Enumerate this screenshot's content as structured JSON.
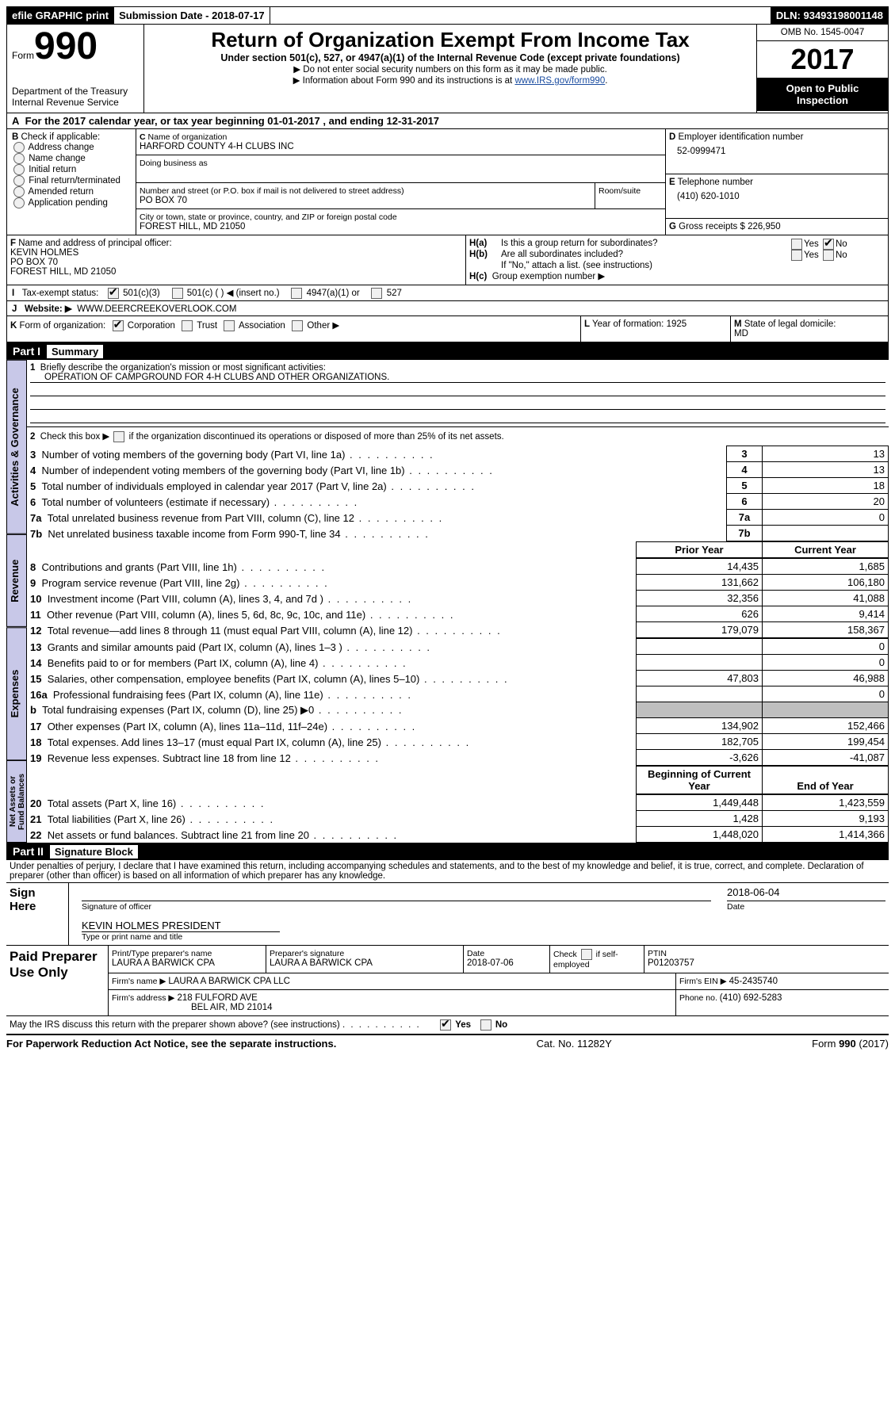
{
  "topbar": {
    "efile": "efile GRAPHIC print",
    "submission_label": "Submission Date - ",
    "submission_date": "2018-07-17",
    "dln_label": "DLN: ",
    "dln": "93493198001148"
  },
  "header": {
    "form_word": "Form",
    "form_number": "990",
    "dept1": "Department of the Treasury",
    "dept2": "Internal Revenue Service",
    "title": "Return of Organization Exempt From Income Tax",
    "sub1": "Under section 501(c), 527, or 4947(a)(1) of the Internal Revenue Code (except private foundations)",
    "sub2": "Do not enter social security numbers on this form as it may be made public.",
    "sub3_a": "Information about Form 990 and its instructions is at ",
    "sub3_link": "www.IRS.gov/form990",
    "omb_label": "OMB No. ",
    "omb": "1545-0047",
    "year": "2017",
    "open": "Open to Public Inspection"
  },
  "A": {
    "text_a": "For the 2017 calendar year, or tax year beginning ",
    "begin": "01-01-2017",
    "text_b": " , and ending ",
    "end": "12-31-2017"
  },
  "B": {
    "label": "Check if applicable:",
    "items": [
      "Address change",
      "Name change",
      "Initial return",
      "Final return/terminated",
      "Amended return",
      "Application pending"
    ]
  },
  "C": {
    "name_label": "Name of organization",
    "org_name": "HARFORD COUNTY 4-H CLUBS INC",
    "dba_label": "Doing business as",
    "street_label": "Number and street (or P.O. box if mail is not delivered to street address)",
    "room_label": "Room/suite",
    "street": "PO BOX 70",
    "city_label": "City or town, state or province, country, and ZIP or foreign postal code",
    "city": "FOREST HILL, MD  21050"
  },
  "D": {
    "label": "Employer identification number",
    "val": "52-0999471"
  },
  "E": {
    "label": "Telephone number",
    "val": "(410) 620-1010"
  },
  "G": {
    "label": "Gross receipts $ ",
    "val": "226,950"
  },
  "F": {
    "label": "Name and address of principal officer:",
    "l1": "KEVIN HOLMES",
    "l2": "PO BOX 70",
    "l3": "FOREST HILL, MD  21050"
  },
  "H": {
    "a": "Is this a group return for subordinates?",
    "b": "Are all subordinates included?",
    "note": "If \"No,\" attach a list. (see instructions)",
    "c": "Group exemption number ▶"
  },
  "I": {
    "label": "Tax-exempt status:",
    "opts": [
      "501(c)(3)",
      "501(c) (  ) ◀ (insert no.)",
      "4947(a)(1) or",
      "527"
    ]
  },
  "J": {
    "label": "Website: ▶",
    "val": "WWW.DEERCREEKOVERLOOK.COM"
  },
  "K": {
    "label": "Form of organization:",
    "opts": [
      "Corporation",
      "Trust",
      "Association",
      "Other ▶"
    ]
  },
  "L": {
    "label": "Year of formation: ",
    "val": "1925"
  },
  "M": {
    "label": "State of legal domicile:",
    "val": "MD"
  },
  "part1": {
    "title": "Part I",
    "subtitle": "Summary",
    "l1_label": "Briefly describe the organization's mission or most significant activities:",
    "l1_val": "OPERATION OF CAMPGROUND FOR 4-H CLUBS AND OTHER ORGANIZATIONS.",
    "l2": "Check this box ▶ if the organization discontinued its operations or disposed of more than 25% of its net assets.",
    "rows_gov": [
      {
        "n": "3",
        "t": "Number of voting members of the governing body (Part VI, line 1a)",
        "v": "13"
      },
      {
        "n": "4",
        "t": "Number of independent voting members of the governing body (Part VI, line 1b)",
        "v": "13"
      },
      {
        "n": "5",
        "t": "Total number of individuals employed in calendar year 2017 (Part V, line 2a)",
        "v": "18"
      },
      {
        "n": "6",
        "t": "Total number of volunteers (estimate if necessary)",
        "v": "20"
      },
      {
        "n": "7a",
        "t": "Total unrelated business revenue from Part VIII, column (C), line 12",
        "v": "0"
      },
      {
        "n": "7b",
        "t": "Net unrelated business taxable income from Form 990-T, line 34",
        "v": ""
      }
    ],
    "col_prior": "Prior Year",
    "col_curr": "Current Year",
    "rows_rev": [
      {
        "n": "8",
        "t": "Contributions and grants (Part VIII, line 1h)",
        "p": "14,435",
        "c": "1,685"
      },
      {
        "n": "9",
        "t": "Program service revenue (Part VIII, line 2g)",
        "p": "131,662",
        "c": "106,180"
      },
      {
        "n": "10",
        "t": "Investment income (Part VIII, column (A), lines 3, 4, and 7d )",
        "p": "32,356",
        "c": "41,088"
      },
      {
        "n": "11",
        "t": "Other revenue (Part VIII, column (A), lines 5, 6d, 8c, 9c, 10c, and 11e)",
        "p": "626",
        "c": "9,414"
      },
      {
        "n": "12",
        "t": "Total revenue—add lines 8 through 11 (must equal Part VIII, column (A), line 12)",
        "p": "179,079",
        "c": "158,367"
      }
    ],
    "rows_exp": [
      {
        "n": "13",
        "t": "Grants and similar amounts paid (Part IX, column (A), lines 1–3 )",
        "p": "",
        "c": "0"
      },
      {
        "n": "14",
        "t": "Benefits paid to or for members (Part IX, column (A), line 4)",
        "p": "",
        "c": "0"
      },
      {
        "n": "15",
        "t": "Salaries, other compensation, employee benefits (Part IX, column (A), lines 5–10)",
        "p": "47,803",
        "c": "46,988"
      },
      {
        "n": "16a",
        "t": "Professional fundraising fees (Part IX, column (A), line 11e)",
        "p": "",
        "c": "0"
      },
      {
        "n": "b",
        "t": "Total fundraising expenses (Part IX, column (D), line 25) ▶0",
        "p": "GREY",
        "c": "GREY"
      },
      {
        "n": "17",
        "t": "Other expenses (Part IX, column (A), lines 11a–11d, 11f–24e)",
        "p": "134,902",
        "c": "152,466"
      },
      {
        "n": "18",
        "t": "Total expenses. Add lines 13–17 (must equal Part IX, column (A), line 25)",
        "p": "182,705",
        "c": "199,454"
      },
      {
        "n": "19",
        "t": "Revenue less expenses. Subtract line 18 from line 12",
        "p": "-3,626",
        "c": "-41,087"
      }
    ],
    "col_beg": "Beginning of Current Year",
    "col_end": "End of Year",
    "rows_net": [
      {
        "n": "20",
        "t": "Total assets (Part X, line 16)",
        "p": "1,449,448",
        "c": "1,423,559"
      },
      {
        "n": "21",
        "t": "Total liabilities (Part X, line 26)",
        "p": "1,428",
        "c": "9,193"
      },
      {
        "n": "22",
        "t": "Net assets or fund balances. Subtract line 21 from line 20",
        "p": "1,448,020",
        "c": "1,414,366"
      }
    ],
    "tabs": [
      "Activities & Governance",
      "Revenue",
      "Expenses",
      "Net Assets or Fund Balances"
    ]
  },
  "part2": {
    "title": "Part II",
    "subtitle": "Signature Block",
    "jurat": "Under penalties of perjury, I declare that I have examined this return, including accompanying schedules and statements, and to the best of my knowledge and belief, it is true, correct, and complete. Declaration of preparer (other than officer) is based on all information of which preparer has any knowledge.",
    "sign_here": "Sign Here",
    "sig_date": "2018-06-04",
    "sig_officer": "Signature of officer",
    "sig_date_lbl": "Date",
    "officer_name": "KEVIN HOLMES PRESIDENT",
    "officer_type": "Type or print name and title",
    "paid": "Paid Preparer Use Only",
    "prep_name_lbl": "Print/Type preparer's name",
    "prep_name": "LAURA A BARWICK CPA",
    "prep_sig_lbl": "Preparer's signature",
    "prep_sig": "LAURA A BARWICK CPA",
    "prep_date_lbl": "Date",
    "prep_date": "2018-07-06",
    "prep_check": "Check       if self-employed",
    "ptin_lbl": "PTIN",
    "ptin": "P01203757",
    "firm_name_lbl": "Firm's name     ▶ ",
    "firm_name": "LAURA A BARWICK CPA LLC",
    "firm_ein_lbl": "Firm's EIN ▶ ",
    "firm_ein": "45-2435740",
    "firm_addr_lbl": "Firm's address ▶ ",
    "firm_addr1": "218 FULFORD AVE",
    "firm_addr2": "BEL AIR, MD  21014",
    "firm_phone_lbl": "Phone no. ",
    "firm_phone": "(410) 692-5283",
    "discuss": "May the IRS discuss this return with the preparer shown above? (see instructions)"
  },
  "footer": {
    "pra": "For Paperwork Reduction Act Notice, see the separate instructions.",
    "cat": "Cat. No. 11282Y",
    "form": "Form 990 (2017)"
  }
}
